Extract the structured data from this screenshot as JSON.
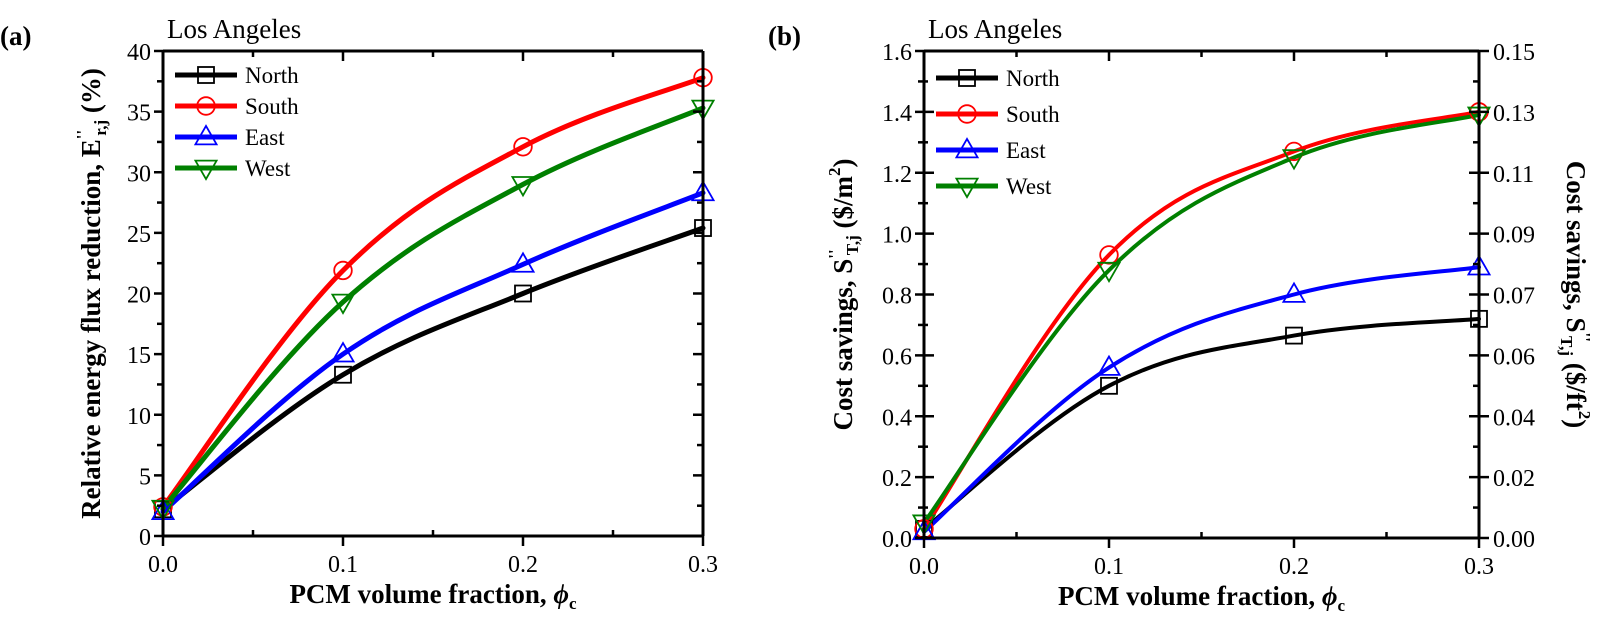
{
  "chart_data": [
    {
      "type": "line",
      "panel_label": "(a)",
      "title": "Los Angeles",
      "xlabel": "PCM volume fraction, ϕc",
      "xlabel_main": "PCM volume fraction, ",
      "xlabel_symbol": "ϕ",
      "xlabel_sub": "c",
      "ylabel": "Relative energy flux reduction, E''r,j (%)",
      "ylabel_main": "Relative energy flux reduction, E",
      "ylabel_sup": "''",
      "ylabel_sub": "r,j",
      "ylabel_tail": " (%)",
      "xlim": [
        0,
        0.3
      ],
      "ylim": [
        0,
        40
      ],
      "xticks": [
        0.0,
        0.1,
        0.2,
        0.3
      ],
      "xtick_labels": [
        "0.0",
        "0.1",
        "0.2",
        "0.3"
      ],
      "yticks": [
        0,
        5,
        10,
        15,
        20,
        25,
        30,
        35,
        40
      ],
      "ytick_labels": [
        "0",
        "5",
        "10",
        "15",
        "20",
        "25",
        "30",
        "35",
        "40"
      ],
      "grid": false,
      "legend_position": "top-left",
      "x": [
        0.0,
        0.1,
        0.2,
        0.3
      ],
      "series": [
        {
          "name": "North",
          "color": "#000000",
          "marker": "square",
          "values": [
            2.2,
            13.3,
            20.0,
            25.4
          ]
        },
        {
          "name": "South",
          "color": "#ff0000",
          "marker": "circle",
          "values": [
            2.4,
            21.9,
            32.1,
            37.8
          ]
        },
        {
          "name": "East",
          "color": "#0000ff",
          "marker": "triangle-up",
          "values": [
            2.0,
            15.0,
            22.4,
            28.3
          ]
        },
        {
          "name": "West",
          "color": "#008000",
          "marker": "triangle-down",
          "values": [
            2.3,
            19.3,
            29.0,
            35.3
          ]
        }
      ]
    },
    {
      "type": "line",
      "panel_label": "(b)",
      "title": "Los Angeles",
      "xlabel": "PCM volume fraction, ϕc",
      "xlabel_main": "PCM volume fraction, ",
      "xlabel_symbol": "ϕ",
      "xlabel_sub": "c",
      "ylabel": "Cost savings, S''T,j ($/m2)",
      "ylabel_main": "Cost savings, S",
      "ylabel_sup": "''",
      "ylabel_sub": "T,j",
      "ylabel_tail": " ($/m",
      "ylabel_tail_sup": "2",
      "ylabel_close": ")",
      "y2label": "Cost savings, S''T,j ($/ft2)",
      "y2label_main": "Cost savings, S",
      "y2label_sup": "''",
      "y2label_sub": "T,j",
      "y2label_tail": " ($/ft",
      "y2label_tail_sup": "2",
      "y2label_close": ")",
      "xlim": [
        0,
        0.3
      ],
      "ylim": [
        0,
        1.6
      ],
      "y2lim": [
        0,
        0.15
      ],
      "xticks": [
        0.0,
        0.1,
        0.2,
        0.3
      ],
      "xtick_labels": [
        "0.0",
        "0.1",
        "0.2",
        "0.3"
      ],
      "yticks": [
        0.0,
        0.2,
        0.4,
        0.6,
        0.8,
        1.0,
        1.2,
        1.4,
        1.6
      ],
      "ytick_labels": [
        "0.0",
        "0.2",
        "0.4",
        "0.6",
        "0.8",
        "1.0",
        "1.2",
        "1.4",
        "1.6"
      ],
      "y2tick_labels": [
        "0.00",
        "0.02",
        "0.04",
        "0.06",
        "0.07",
        "0.09",
        "0.11",
        "0.13",
        "0.15"
      ],
      "grid": false,
      "legend_position": "top-left",
      "x": [
        0.0,
        0.1,
        0.2,
        0.3
      ],
      "series": [
        {
          "name": "North",
          "color": "#000000",
          "marker": "square",
          "values": [
            0.03,
            0.5,
            0.665,
            0.72
          ]
        },
        {
          "name": "South",
          "color": "#ff0000",
          "marker": "circle",
          "values": [
            0.03,
            0.93,
            1.27,
            1.4
          ]
        },
        {
          "name": "East",
          "color": "#0000ff",
          "marker": "triangle-up",
          "values": [
            0.02,
            0.56,
            0.8,
            0.89
          ]
        },
        {
          "name": "West",
          "color": "#008000",
          "marker": "triangle-down",
          "values": [
            0.05,
            0.88,
            1.25,
            1.39
          ]
        }
      ]
    }
  ]
}
